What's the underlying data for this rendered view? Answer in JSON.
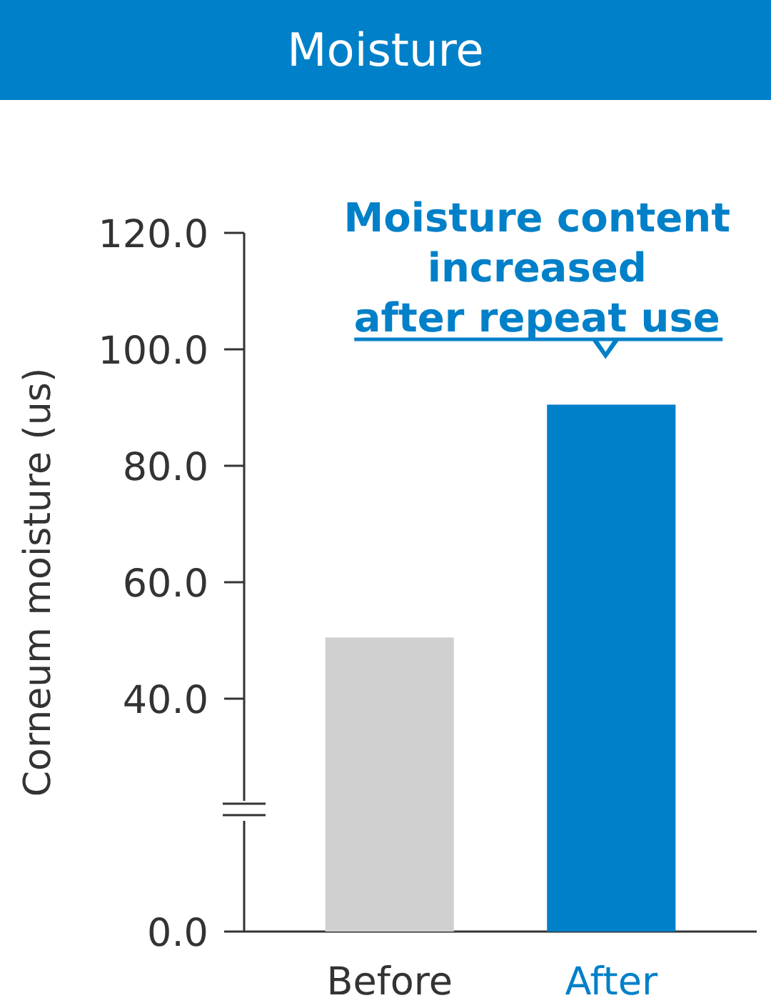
{
  "chart_data": {
    "type": "bar",
    "title": "Moisture",
    "ylabel": "Corneum moisture (us)",
    "categories": [
      "Before",
      "After"
    ],
    "values": [
      50.5,
      90.5
    ],
    "colors": [
      "#d0d0d0",
      "#0080c8"
    ],
    "ylim": [
      0,
      120
    ],
    "yticks": [
      {
        "value": 0,
        "label": "0.0"
      },
      {
        "value": 40,
        "label": "40.0"
      },
      {
        "value": 60,
        "label": "60.0"
      },
      {
        "value": 80,
        "label": "80.0"
      },
      {
        "value": 100,
        "label": "100.0"
      },
      {
        "value": 120,
        "label": "120.0"
      }
    ],
    "annotations": [
      "Moisture content\nincreased\nafter repeat use"
    ]
  }
}
